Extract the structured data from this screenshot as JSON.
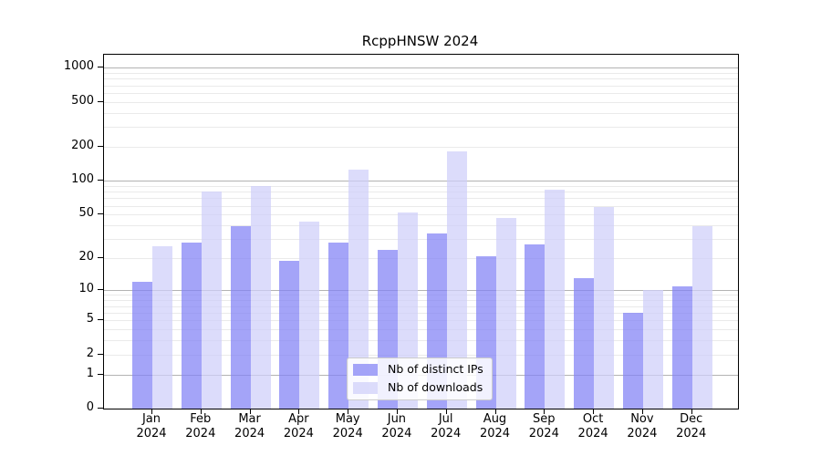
{
  "title": "RcppHNSW 2024",
  "chart_data": {
    "type": "bar",
    "title": "RcppHNSW 2024",
    "categories": [
      "Jan 2024",
      "Feb 2024",
      "Mar 2024",
      "Apr 2024",
      "May 2024",
      "Jun 2024",
      "Jul 2024",
      "Aug 2024",
      "Sep 2024",
      "Oct 2024",
      "Nov 2024",
      "Dec 2024"
    ],
    "x_tick_month": [
      "Jan",
      "Feb",
      "Mar",
      "Apr",
      "May",
      "Jun",
      "Jul",
      "Aug",
      "Sep",
      "Oct",
      "Nov",
      "Dec"
    ],
    "x_tick_year": "2024",
    "series": [
      {
        "name": "Nb of distinct IPs",
        "color": "rgba(129,129,245,0.72)",
        "values": [
          12,
          28,
          39,
          19,
          28,
          24,
          34,
          21,
          27,
          13,
          6,
          11
        ]
      },
      {
        "name": "Nb of downloads",
        "color": "rgba(206,206,250,0.72)",
        "values": [
          26,
          80,
          90,
          43,
          127,
          52,
          183,
          47,
          84,
          58,
          10,
          39
        ]
      }
    ],
    "y_axis": {
      "scale": "log1p",
      "tick_values": [
        0,
        1,
        2,
        5,
        10,
        20,
        50,
        100,
        200,
        500,
        1000
      ],
      "range_top": 1300,
      "grid_major": [
        1,
        10,
        100,
        1000
      ],
      "grid_minor": [
        2,
        3,
        4,
        5,
        6,
        7,
        8,
        9,
        20,
        30,
        40,
        50,
        60,
        70,
        80,
        90,
        200,
        300,
        400,
        500,
        600,
        700,
        800,
        900
      ]
    },
    "legend": {
      "position": "lower center",
      "entries": [
        "Nb of distinct IPs",
        "Nb of downloads"
      ]
    },
    "grid": true,
    "xlabel": "",
    "ylabel": ""
  },
  "colors": {
    "grid_major": "#b3b3b3",
    "grid_minor": "#eaeaea",
    "axis": "#000000",
    "background": "#ffffff"
  }
}
